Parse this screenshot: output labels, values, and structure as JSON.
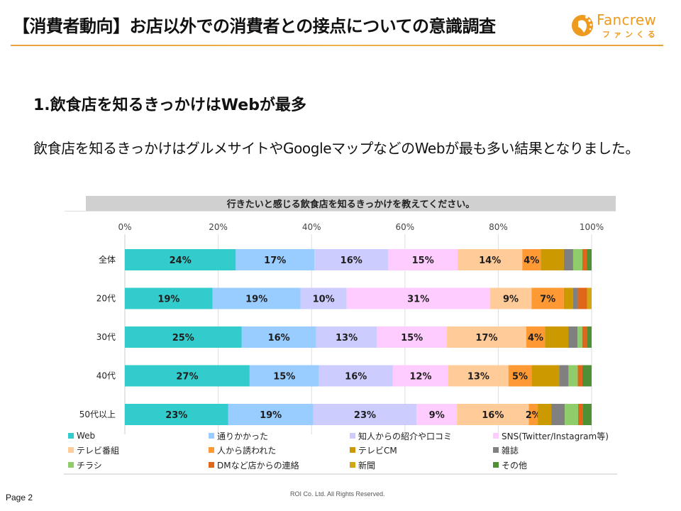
{
  "header": {
    "title": "【消費者動向】お店以外での消費者との接点についての意識調査",
    "logo": {
      "name": "Fancrew",
      "kana": "ファンくる",
      "color": "#ee9a1f"
    },
    "rule_color": "#e9a23b"
  },
  "section": {
    "heading": "1.飲食店を知るきっかけはWebが最多",
    "body": "飲食店を知るきっかけはグルメサイトやGoogleマップなどのWebが最も多い結果となりました。"
  },
  "chart_data": {
    "type": "bar",
    "orientation": "horizontal",
    "stacked": true,
    "percent_stacked": true,
    "title": "行きたいと感じる飲食店を知るきっかけを教えてください。",
    "xlabel": "",
    "ylabel": "",
    "xlim": [
      0,
      100
    ],
    "xticks": [
      "0%",
      "20%",
      "40%",
      "60%",
      "80%",
      "100%"
    ],
    "xtick_values": [
      0,
      20,
      40,
      60,
      80,
      100
    ],
    "grid": true,
    "legend_position": "bottom",
    "categories": [
      "全体",
      "20代",
      "30代",
      "40代",
      "50代以上"
    ],
    "series": [
      {
        "name": "Web",
        "color": "#33cccc",
        "values": [
          24,
          19,
          25,
          27,
          23
        ]
      },
      {
        "name": "通りかかった",
        "color": "#99ccff",
        "values": [
          17,
          19,
          16,
          15,
          19
        ]
      },
      {
        "name": "知人からの紹介や口コミ",
        "color": "#ccccff",
        "values": [
          16,
          10,
          13,
          16,
          23
        ]
      },
      {
        "name": "SNS(Twitter/Instagram等)",
        "color": "#ffccff",
        "values": [
          15,
          31,
          15,
          12,
          9
        ]
      },
      {
        "name": "テレビ番組",
        "color": "#ffcc99",
        "values": [
          14,
          9,
          17,
          13,
          16
        ]
      },
      {
        "name": "人から誘われた",
        "color": "#ff9933",
        "values": [
          4,
          7,
          4,
          5,
          2
        ]
      },
      {
        "name": "テレビCM",
        "color": "#cc9900",
        "values": [
          5,
          2,
          5,
          6,
          3
        ]
      },
      {
        "name": "雑誌",
        "color": "#808080",
        "values": [
          2,
          1,
          2,
          2,
          3
        ]
      },
      {
        "name": "チラシ",
        "color": "#8fcc6a",
        "values": [
          2,
          0,
          1,
          2,
          3
        ]
      },
      {
        "name": "DMなど店からの連絡",
        "color": "#e0661a",
        "values": [
          1,
          2,
          1,
          1,
          1
        ]
      },
      {
        "name": "新聞",
        "color": "#d4a512",
        "values": [
          0,
          1,
          0,
          0,
          0
        ]
      },
      {
        "name": "その他",
        "color": "#4f8f35",
        "values": [
          1,
          0,
          1,
          2,
          2
        ]
      }
    ],
    "data_labels": [
      [
        "24%",
        "17%",
        "16%",
        "15%",
        "14%",
        "4%"
      ],
      [
        "19%",
        "19%",
        "10%",
        "31%",
        "9%",
        "7%"
      ],
      [
        "25%",
        "16%",
        "13%",
        "15%",
        "17%",
        "4%"
      ],
      [
        "27%",
        "15%",
        "16%",
        "12%",
        "13%",
        "5%"
      ],
      [
        "23%",
        "19%",
        "23%",
        "9%",
        "16%",
        "2%"
      ]
    ]
  },
  "footer": {
    "page": "Page 2",
    "copyright": "ROI Co. Ltd. All Rights Reserved."
  }
}
